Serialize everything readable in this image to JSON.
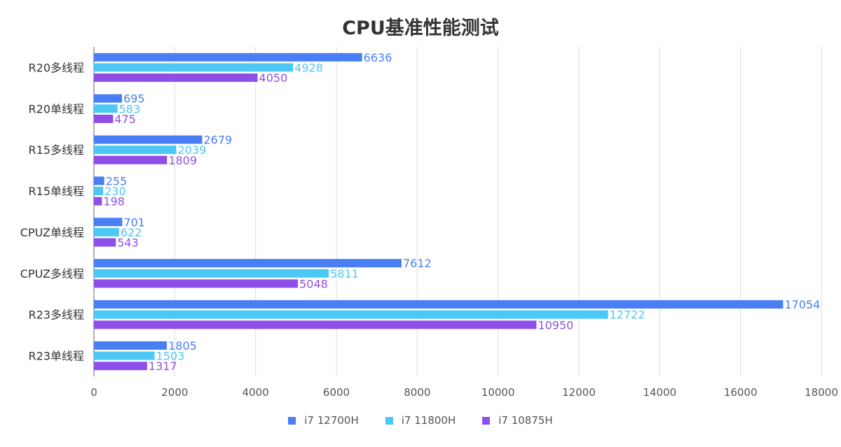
{
  "chart_data": {
    "type": "bar",
    "orientation": "horizontal",
    "title": "CPU基准性能测试",
    "categories": [
      "R20多线程",
      "R20单线程",
      "R15多线程",
      "R15单线程",
      "CPUZ单线程",
      "CPUZ多线程",
      "R23多线程",
      "R23单线程"
    ],
    "series": [
      {
        "name": "i7 12700H",
        "color": "#4a7ef5",
        "values": [
          6636,
          695,
          2679,
          255,
          701,
          7612,
          17054,
          1805
        ]
      },
      {
        "name": "i7 11800H",
        "color": "#4cc8f5",
        "values": [
          4928,
          583,
          2039,
          230,
          622,
          5811,
          12722,
          1503
        ]
      },
      {
        "name": "i7 10875H",
        "color": "#8e4fe8",
        "values": [
          4050,
          475,
          1809,
          198,
          543,
          5048,
          10950,
          1317
        ]
      }
    ],
    "xlim": [
      0,
      18000
    ],
    "xticks": [
      "0",
      "2000",
      "4000",
      "6000",
      "8000",
      "10000",
      "12000",
      "14000",
      "16000",
      "18000"
    ],
    "grid": true,
    "legend_position": "bottom",
    "data_labels": true
  }
}
